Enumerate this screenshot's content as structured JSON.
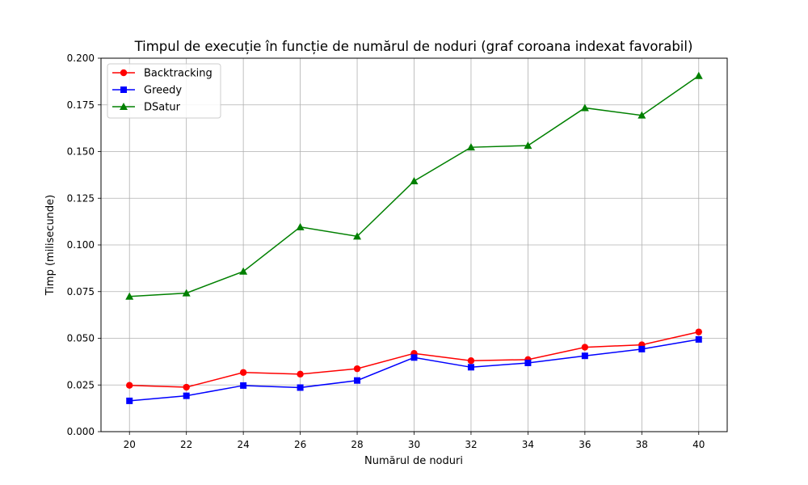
{
  "chart_data": {
    "type": "line",
    "title": "Timpul de execuție în funcție de numărul de noduri (graf coroana indexat favorabil)",
    "xlabel": "Numărul de noduri",
    "ylabel": "Timp (milisecunde)",
    "x": [
      20,
      22,
      24,
      26,
      28,
      30,
      32,
      34,
      36,
      38,
      40
    ],
    "xticks": [
      "20",
      "22",
      "24",
      "26",
      "28",
      "30",
      "32",
      "34",
      "36",
      "38",
      "40"
    ],
    "yticks": [
      "0.000",
      "0.025",
      "0.050",
      "0.075",
      "0.100",
      "0.125",
      "0.150",
      "0.175",
      "0.200"
    ],
    "xlim": [
      19,
      41
    ],
    "ylim": [
      0.0,
      0.2
    ],
    "grid": true,
    "legend_position": "top-left",
    "series": [
      {
        "name": "Backtracking",
        "color": "#ff0000",
        "marker": "circle",
        "values": [
          0.0248,
          0.0238,
          0.0317,
          0.0308,
          0.0337,
          0.0419,
          0.038,
          0.0386,
          0.0452,
          0.0465,
          0.0534
        ]
      },
      {
        "name": "Greedy",
        "color": "#0000ff",
        "marker": "square",
        "values": [
          0.0165,
          0.0192,
          0.0247,
          0.0236,
          0.0274,
          0.0397,
          0.0345,
          0.0368,
          0.0406,
          0.0442,
          0.0494
        ]
      },
      {
        "name": "DSatur",
        "color": "#008000",
        "marker": "triangle",
        "values": [
          0.0724,
          0.0742,
          0.0858,
          0.1096,
          0.1046,
          0.1342,
          0.1523,
          0.1532,
          0.1734,
          0.1694,
          0.1906
        ]
      }
    ]
  }
}
